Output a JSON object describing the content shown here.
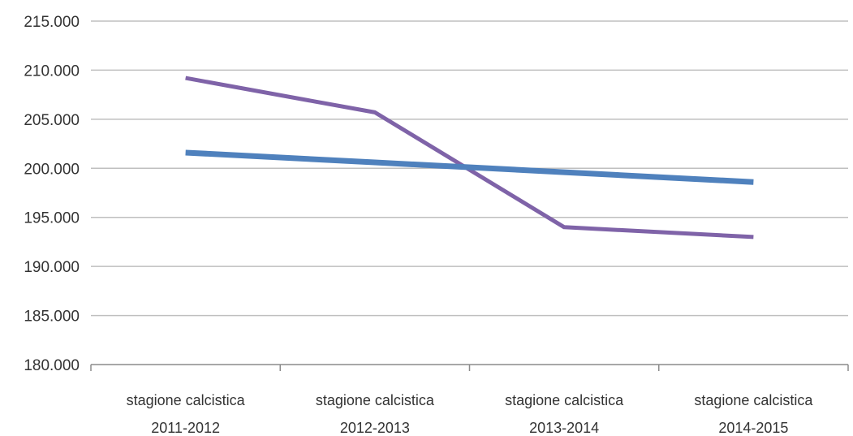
{
  "chart_data": {
    "type": "line",
    "categories": [
      [
        "stagione calcistica",
        "2011-2012"
      ],
      [
        "stagione calcistica",
        "2012-2013"
      ],
      [
        "stagione calcistica",
        "2013-2014"
      ],
      [
        "stagione calcistica",
        "2014-2015"
      ]
    ],
    "y_tick_labels": [
      "180.000",
      "185.000",
      "190.000",
      "195.000",
      "200.000",
      "205.000",
      "210.000",
      "215.000"
    ],
    "y_ticks": [
      180000,
      185000,
      190000,
      195000,
      200000,
      205000,
      210000,
      215000
    ],
    "ylim": [
      180000,
      215000
    ],
    "grid": true,
    "legend": "none",
    "series": [
      {
        "values": [
          209200,
          205700,
          194000,
          193000
        ],
        "color": "#7f63a8"
      },
      {
        "values": [
          201600,
          200600,
          199600,
          198600
        ],
        "color": "#4f81bd"
      }
    ]
  }
}
